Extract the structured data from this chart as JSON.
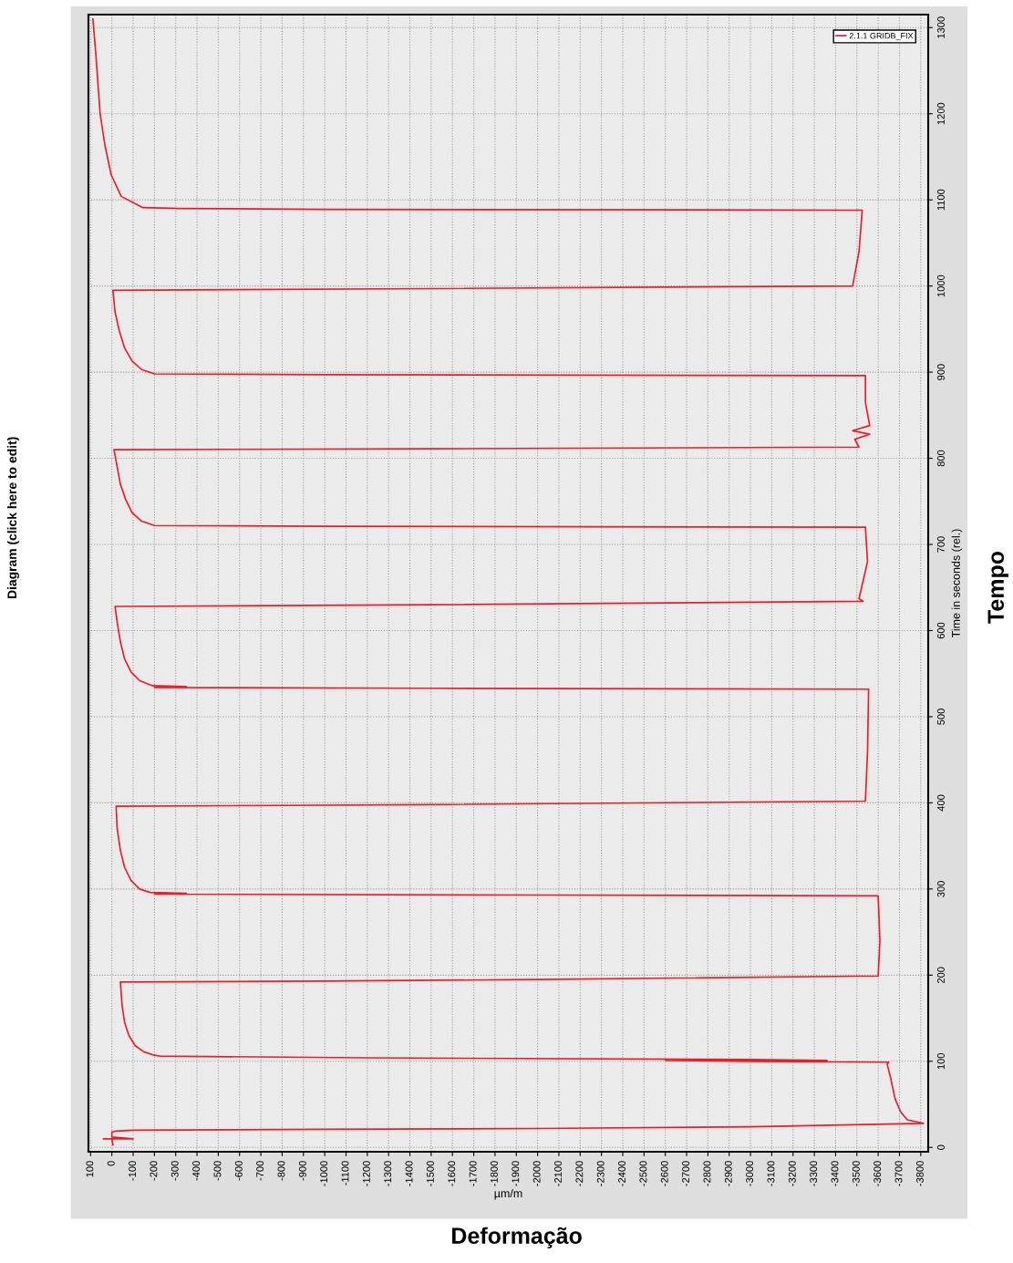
{
  "chart_data": {
    "type": "line",
    "title": "Diagram (click here to edit)",
    "xlabel": "µm/m",
    "ylabel": "Time in seconds (rel.)",
    "annotations": [
      "Deformação",
      "Tempo"
    ],
    "series": [
      {
        "name": "2.1.1 GRIDB_FIX",
        "color": "#ee1c25",
        "x": [
          -5,
          0,
          40,
          -100,
          0,
          0,
          -20,
          -100,
          -1000,
          -2000,
          -3000,
          -3813,
          -3737,
          -3706,
          -3680,
          -3658,
          -3642,
          -3650,
          -3000,
          -2600,
          -3360,
          -3000,
          -1200,
          -225,
          -200,
          -150,
          -110,
          -80,
          -60,
          -48,
          -40,
          -1000,
          -2000,
          -3600,
          -3608,
          -3600,
          -2000,
          -200,
          -350,
          -180,
          -130,
          -90,
          -60,
          -40,
          -25,
          -20,
          -1500,
          -3540,
          -3550,
          -3555,
          -1500,
          -200,
          -350,
          -190,
          -130,
          -90,
          -60,
          -40,
          -25,
          -15,
          -1500,
          -3530,
          -3510,
          -3550,
          -3540,
          -1000,
          -200,
          -140,
          -95,
          -65,
          -40,
          -25,
          -10,
          -1500,
          -3510,
          -3490,
          -3560,
          -3480,
          -3560,
          -3540,
          -3540,
          -1000,
          -200,
          -140,
          -95,
          -60,
          -35,
          -15,
          -5,
          -1500,
          -3480,
          -3510,
          -3525,
          -1000,
          -320,
          -146,
          -44,
          3,
          33,
          55,
          76,
          89
        ],
        "values": [
          3,
          10,
          10,
          10,
          12,
          18,
          19,
          20,
          21,
          22,
          24,
          28,
          32,
          41,
          56,
          81,
          97,
          99,
          100,
          101,
          101,
          102,
          104,
          106,
          107,
          111,
          118,
          130,
          145,
          165,
          192,
          193,
          195,
          199,
          240,
          292,
          293,
          294,
          295,
          296,
          300,
          310,
          325,
          345,
          370,
          396,
          398,
          402,
          460,
          532,
          533,
          534,
          535,
          536,
          542,
          552,
          567,
          587,
          610,
          628,
          630,
          634,
          637,
          680,
          720,
          721,
          722,
          727,
          737,
          752,
          770,
          790,
          810,
          811,
          813,
          822,
          828,
          832,
          838,
          865,
          896,
          897,
          898,
          903,
          913,
          928,
          948,
          970,
          995,
          997,
          1000,
          1040,
          1088,
          1089,
          1090,
          1091,
          1104,
          1129,
          1164,
          1200,
          1272,
          1310
        ]
      }
    ],
    "xlim": [
      110,
      -3835
    ],
    "xticks": [
      100,
      0,
      -100,
      -200,
      -300,
      -400,
      -500,
      -600,
      -700,
      -800,
      -900,
      -1000,
      -1100,
      -1200,
      -1300,
      -1400,
      -1500,
      -1600,
      -1700,
      -1800,
      -1900,
      -2000,
      -2100,
      -2200,
      -2300,
      -2400,
      -2500,
      -2600,
      -2700,
      -2800,
      -2900,
      -3000,
      -3100,
      -3200,
      -3300,
      -3400,
      -3500,
      -3600,
      -3700,
      -3800
    ],
    "ylim": [
      -5,
      1315
    ],
    "yticks": [
      0,
      100,
      200,
      300,
      400,
      500,
      600,
      700,
      800,
      900,
      1000,
      1100,
      1200,
      1300
    ],
    "grid": true,
    "legend": "top right",
    "marker": "none",
    "line_style": "solid"
  }
}
